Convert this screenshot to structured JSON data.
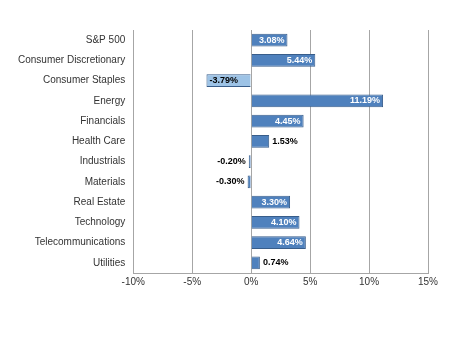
{
  "chart_data": {
    "type": "bar",
    "orientation": "horizontal",
    "categories": [
      "S&P 500",
      "Consumer Discretionary",
      "Consumer Staples",
      "Energy",
      "Financials",
      "Health Care",
      "Industrials",
      "Materials",
      "Real Estate",
      "Technology",
      "Telecommunications",
      "Utilities"
    ],
    "values": [
      3.08,
      5.44,
      -3.79,
      11.19,
      4.45,
      1.53,
      -0.2,
      -0.3,
      3.3,
      4.1,
      4.64,
      0.74
    ],
    "value_labels": [
      "3.08%",
      "5.44%",
      "-3.79%",
      "11.19%",
      "4.45%",
      "1.53%",
      "-0.20%",
      "-0.30%",
      "3.30%",
      "4.10%",
      "4.64%",
      "0.74%"
    ],
    "colors": [
      "#4f81bd",
      "#4f81bd",
      "#9dc3e6",
      "#4f81bd",
      "#4f81bd",
      "#4f81bd",
      "#4f81bd",
      "#4f81bd",
      "#4f81bd",
      "#4f81bd",
      "#4f81bd",
      "#4f81bd"
    ],
    "xlim": [
      -10,
      15
    ],
    "xticks": [
      {
        "value": -10,
        "label": "-10%"
      },
      {
        "value": -5,
        "label": "-5%"
      },
      {
        "value": 0,
        "label": "0%"
      },
      {
        "value": 5,
        "label": "5%"
      },
      {
        "value": 10,
        "label": "10%"
      },
      {
        "value": 15,
        "label": "15%"
      }
    ],
    "grid": true,
    "data_labels": true
  }
}
